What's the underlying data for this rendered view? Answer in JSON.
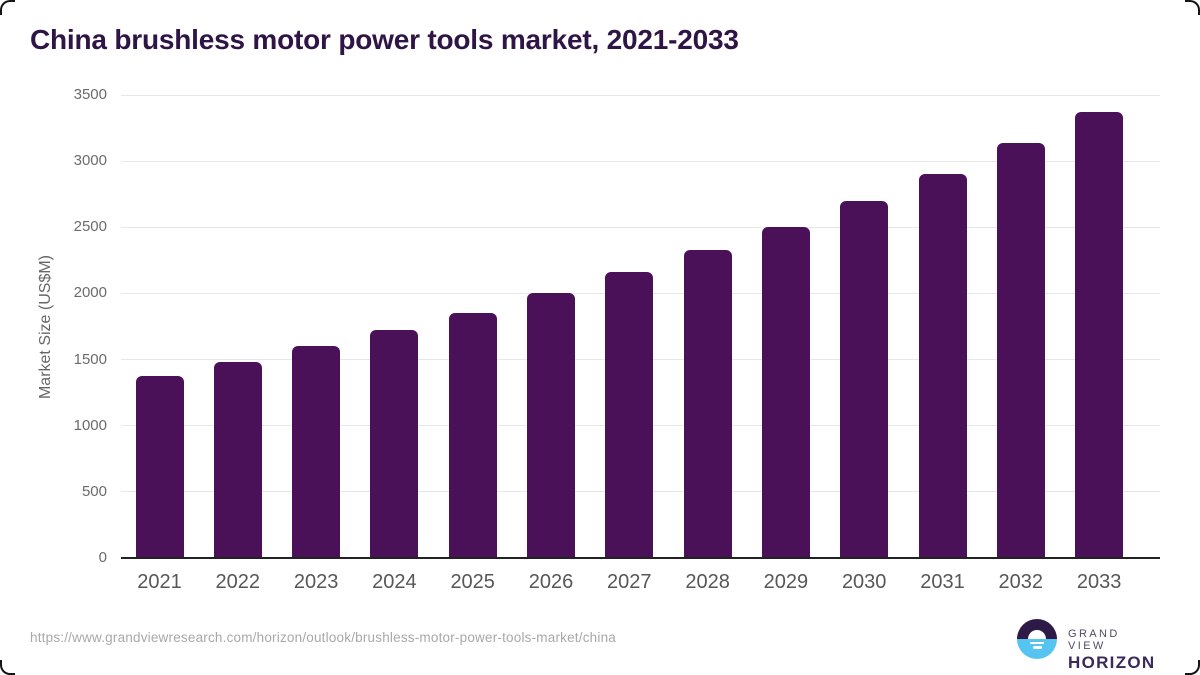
{
  "header": {
    "title": "China brushless motor power tools market, 2021-2033"
  },
  "chart_data": {
    "type": "bar",
    "title": "China brushless motor power tools market, 2021-2033",
    "categories": [
      "2021",
      "2022",
      "2023",
      "2024",
      "2025",
      "2026",
      "2027",
      "2028",
      "2029",
      "2030",
      "2031",
      "2032",
      "2033"
    ],
    "values": [
      1375,
      1485,
      1600,
      1720,
      1855,
      2000,
      2160,
      2325,
      2505,
      2695,
      2905,
      3135,
      3375
    ],
    "xlabel": "",
    "ylabel": "Market Size (US$M)",
    "ylim": [
      0,
      3500
    ],
    "yticks": [
      0,
      500,
      1000,
      1500,
      2000,
      2500,
      3000,
      3500
    ],
    "grid": true,
    "legend_position": "none",
    "bar_color": "#4A1158"
  },
  "footer": {
    "source_url": "https://www.grandviewresearch.com/horizon/outlook/brushless-motor-power-tools-market/china",
    "logo": {
      "brand_top": "GRAND VIEW",
      "brand_bottom": "HORIZON"
    }
  },
  "colors": {
    "bar": "#4A1158",
    "title_text": "#2F1546",
    "gridline": "#E7E7E7",
    "axis_line": "#222222",
    "y_tick_label": "#6B6B6B",
    "x_tick_label": "#575757",
    "url_text": "#A8A8A8",
    "logo_purple": "#2E1A47",
    "logo_blue": "#56C4F0",
    "logo_text_top": "#534A68",
    "logo_text_bottom": "#3A2A5A"
  }
}
